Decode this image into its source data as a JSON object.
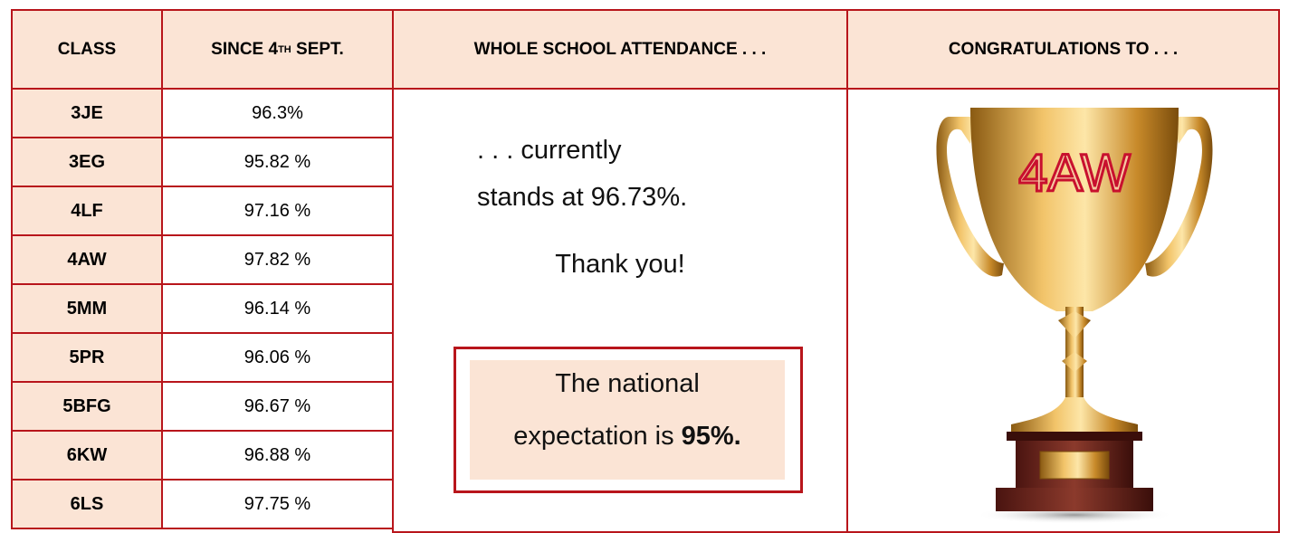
{
  "table": {
    "header": [
      "CLASS",
      [
        "SINCE 4",
        "TH",
        " SEPT."
      ],
      "WHOLE SCHOOL ATTENDANCE . . .",
      "CONGRATULATIONS TO . . ."
    ],
    "rows": [
      [
        "3JE",
        "96.3%"
      ],
      [
        "3EG",
        "95.82 %"
      ],
      [
        "4LF",
        "97.16 %"
      ],
      [
        "4AW",
        "97.82 %"
      ],
      [
        "5MM",
        "96.14 %"
      ],
      [
        "5PR",
        "96.06 %"
      ],
      [
        "5BFG",
        "96.67 %"
      ],
      [
        "6KW",
        "96.88 %"
      ],
      [
        "6LS",
        "97.75 %"
      ]
    ]
  },
  "attendance": {
    "line1": ". . . currently",
    "line2": "stands at 96.73%.",
    "thanks": "Thank you!"
  },
  "expectation": {
    "line1": "The national",
    "line2": "expectation is",
    "value": "95%."
  },
  "congratulations": {
    "class": "4AW"
  }
}
